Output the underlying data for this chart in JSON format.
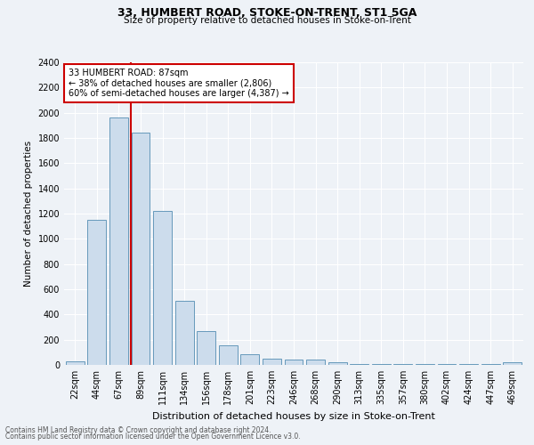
{
  "title_line1": "33, HUMBERT ROAD, STOKE-ON-TRENT, ST1 5GA",
  "title_line2": "Size of property relative to detached houses in Stoke-on-Trent",
  "xlabel": "Distribution of detached houses by size in Stoke-on-Trent",
  "ylabel": "Number of detached properties",
  "footer_line1": "Contains HM Land Registry data © Crown copyright and database right 2024.",
  "footer_line2": "Contains public sector information licensed under the Open Government Licence v3.0.",
  "bar_labels": [
    "22sqm",
    "44sqm",
    "67sqm",
    "89sqm",
    "111sqm",
    "134sqm",
    "156sqm",
    "178sqm",
    "201sqm",
    "223sqm",
    "246sqm",
    "268sqm",
    "290sqm",
    "313sqm",
    "335sqm",
    "357sqm",
    "380sqm",
    "402sqm",
    "424sqm",
    "447sqm",
    "469sqm"
  ],
  "bar_values": [
    30,
    1150,
    1960,
    1840,
    1220,
    510,
    265,
    155,
    85,
    50,
    40,
    40,
    20,
    10,
    5,
    5,
    5,
    5,
    5,
    5,
    20
  ],
  "bar_color": "#ccdcec",
  "bar_edge_color": "#6699bb",
  "vline_color": "#cc0000",
  "annotation_title": "33 HUMBERT ROAD: 87sqm",
  "annotation_line2": "← 38% of detached houses are smaller (2,806)",
  "annotation_line3": "60% of semi-detached houses are larger (4,387) →",
  "annotation_box_color": "#cc0000",
  "ylim": [
    0,
    2400
  ],
  "background_color": "#eef2f7",
  "grid_color": "#ffffff"
}
